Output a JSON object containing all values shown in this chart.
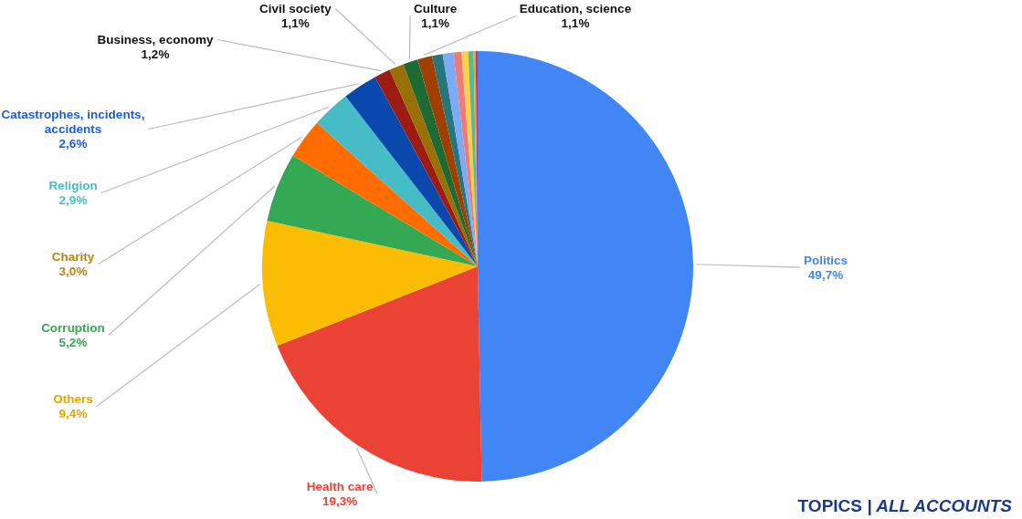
{
  "chart_data": {
    "type": "pie",
    "title": "TOPICS | ALL ACCOUNTS",
    "categories": [
      "Politics",
      "Health care",
      "Others",
      "Corruption",
      "Charity",
      "Religion",
      "Catastrophes, incidents, accidents",
      "Business, economy",
      "Civil society",
      "Culture",
      "Education, science",
      null,
      null,
      null,
      null,
      null,
      null,
      null
    ],
    "values": [
      49.7,
      19.3,
      9.4,
      5.2,
      3.0,
      2.9,
      2.6,
      1.2,
      1.1,
      1.1,
      1.1,
      0.8,
      0.8,
      0.6,
      0.5,
      0.4,
      0.15,
      0.15
    ],
    "colors": [
      "#4285f4",
      "#ea4335",
      "#fbbc04",
      "#34a853",
      "#ff6d01",
      "#46bdc6",
      "#0b48ad",
      "#9c1c13",
      "#987005",
      "#1d6b33",
      "#a04000",
      "#27767d",
      "#7baaf7",
      "#f07b72",
      "#fcd04f",
      "#57bb8a",
      "#ff994d",
      "#8e44ad"
    ],
    "value_labels": [
      "49,7%",
      "19,3%",
      "9,4%",
      "5,2%",
      "3,0%",
      "2,9%",
      "2,6%",
      "1,2%",
      "1,1%",
      "1,1%",
      "1,1%",
      null,
      null,
      null,
      null,
      null,
      null,
      null
    ],
    "legend": false
  }
}
